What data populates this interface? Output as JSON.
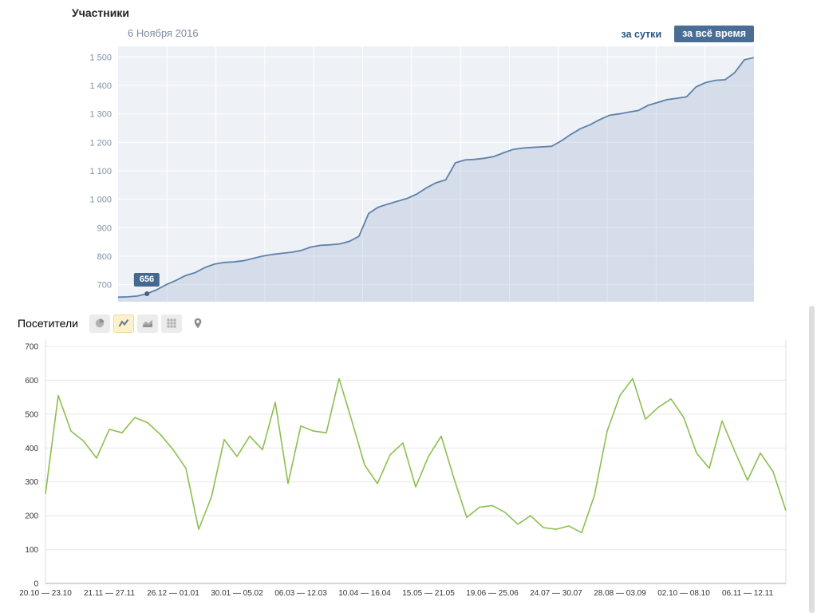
{
  "members": {
    "title": "Участники",
    "date_label": "6 Ноября 2016",
    "range_day_label": "за сутки",
    "range_all_label": "за всё время",
    "tooltip_value": "656"
  },
  "visitors": {
    "label": "Посетители",
    "icons": [
      "pie-chart",
      "line-chart",
      "area-chart",
      "table-chart",
      "map-pin"
    ],
    "selected_icon": "line-chart"
  },
  "chart_data": [
    {
      "type": "area",
      "title": "Участники",
      "series": [
        {
          "name": "Участники",
          "values": [
            656,
            657,
            660,
            668,
            682,
            700,
            715,
            732,
            742,
            760,
            772,
            778,
            780,
            784,
            792,
            800,
            806,
            810,
            814,
            820,
            832,
            838,
            840,
            843,
            852,
            870,
            950,
            972,
            983,
            993,
            1003,
            1018,
            1040,
            1058,
            1068,
            1128,
            1138,
            1140,
            1144,
            1150,
            1163,
            1175,
            1180,
            1182,
            1184,
            1186,
            1205,
            1228,
            1248,
            1262,
            1280,
            1295,
            1300,
            1306,
            1312,
            1330,
            1340,
            1350,
            1355,
            1360,
            1395,
            1410,
            1418,
            1420,
            1445,
            1490,
            1498
          ]
        }
      ],
      "ylim": [
        640,
        1515
      ],
      "y_tick_values": [
        700,
        800,
        900,
        1000,
        1100,
        1200,
        1300,
        1400,
        1500
      ],
      "y_tick_labels": [
        "700",
        "800",
        "900",
        "1 000",
        "1 100",
        "1 200",
        "1 300",
        "1 400",
        "1 500"
      ],
      "annotation": {
        "index": 3,
        "label": "656"
      },
      "line_color": "#5d81ab",
      "fill_color": "rgba(93,129,171,0.18)",
      "plot_bg": "#eef2f7",
      "grid_color": "#ffffff",
      "label_color": "#7d92a9"
    },
    {
      "type": "line",
      "title": "Посетители",
      "values": [
        265,
        555,
        450,
        420,
        370,
        455,
        445,
        490,
        475,
        440,
        395,
        340,
        160,
        255,
        425,
        375,
        435,
        395,
        535,
        295,
        465,
        450,
        445,
        605,
        480,
        350,
        295,
        380,
        415,
        285,
        375,
        435,
        310,
        195,
        225,
        230,
        210,
        175,
        200,
        165,
        160,
        170,
        150,
        260,
        450,
        555,
        605,
        485,
        520,
        545,
        490,
        385,
        340,
        480,
        390,
        305,
        385,
        330,
        215
      ],
      "ylim": [
        0,
        700
      ],
      "y_ticks": [
        0,
        100,
        200,
        300,
        400,
        500,
        600,
        700
      ],
      "x_tick_positions": [
        0,
        5,
        10,
        15,
        20,
        25,
        30,
        35,
        40,
        45,
        50,
        55
      ],
      "x_tick_labels": [
        "20.10 — 23.10",
        "21.11 — 27.11",
        "26.12 — 01.01",
        "30.01 — 05.02",
        "06.03 — 12.03",
        "10.04 — 16.04",
        "15.05 — 21.05",
        "19.06 — 25.06",
        "24.07 — 30.07",
        "28.08 — 03.09",
        "02.10 — 08.10",
        "06.11 — 12.11"
      ],
      "line_color": "#8cbf4e",
      "grid_color": "#e8e8e8"
    }
  ]
}
